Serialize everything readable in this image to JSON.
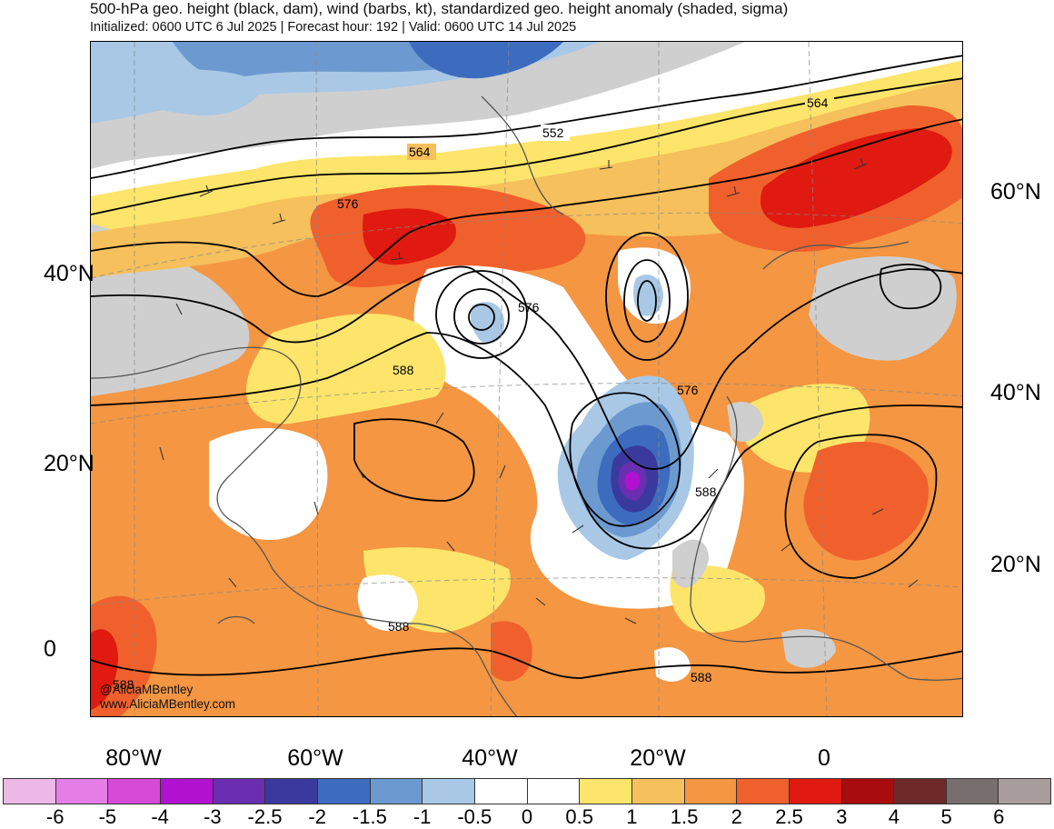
{
  "title": "500-hPa geo. height (black, dam), wind (barbs, kt), standardized geo. height anomaly (shaded, sigma)",
  "subtitle": "Initialized: 0600 UTC 6 Jul 2025 | Forecast hour: 192 | Valid: 0600 UTC 14 Jul 2025",
  "credit": {
    "handle": "@AliciaMBentley",
    "website": "www.AliciaMBentley.com"
  },
  "axes": {
    "left_lat_labels": [
      "40°N",
      "20°N",
      "0"
    ],
    "right_lat_labels": [
      "60°N",
      "40°N",
      "20°N"
    ],
    "bottom_lon_labels": [
      "80°W",
      "60°W",
      "40°W",
      "20°W",
      "0"
    ]
  },
  "contour_labels": [
    "552",
    "564",
    "564",
    "576",
    "576",
    "576",
    "588",
    "588",
    "588",
    "588",
    "588"
  ],
  "colorbar": {
    "ticks": [
      "-6",
      "-5",
      "-4",
      "-3",
      "-2.5",
      "-2",
      "-1.5",
      "-1",
      "-0.5",
      "0",
      "0.5",
      "1",
      "1.5",
      "2",
      "2.5",
      "3",
      "4",
      "5",
      "6"
    ],
    "colors": [
      "#ecb8e8",
      "#e47ee6",
      "#d64ad8",
      "#b012d0",
      "#6a2eb0",
      "#3a3a9e",
      "#3d6cbe",
      "#6c9ad0",
      "#a8c8e6",
      "#ffffff",
      "#ffffff",
      "#fce56a",
      "#f6c05c",
      "#f49642",
      "#f0602c",
      "#e01a10",
      "#a80c0c",
      "#6e2a28",
      "#786e6e",
      "#a89c9c"
    ]
  }
}
